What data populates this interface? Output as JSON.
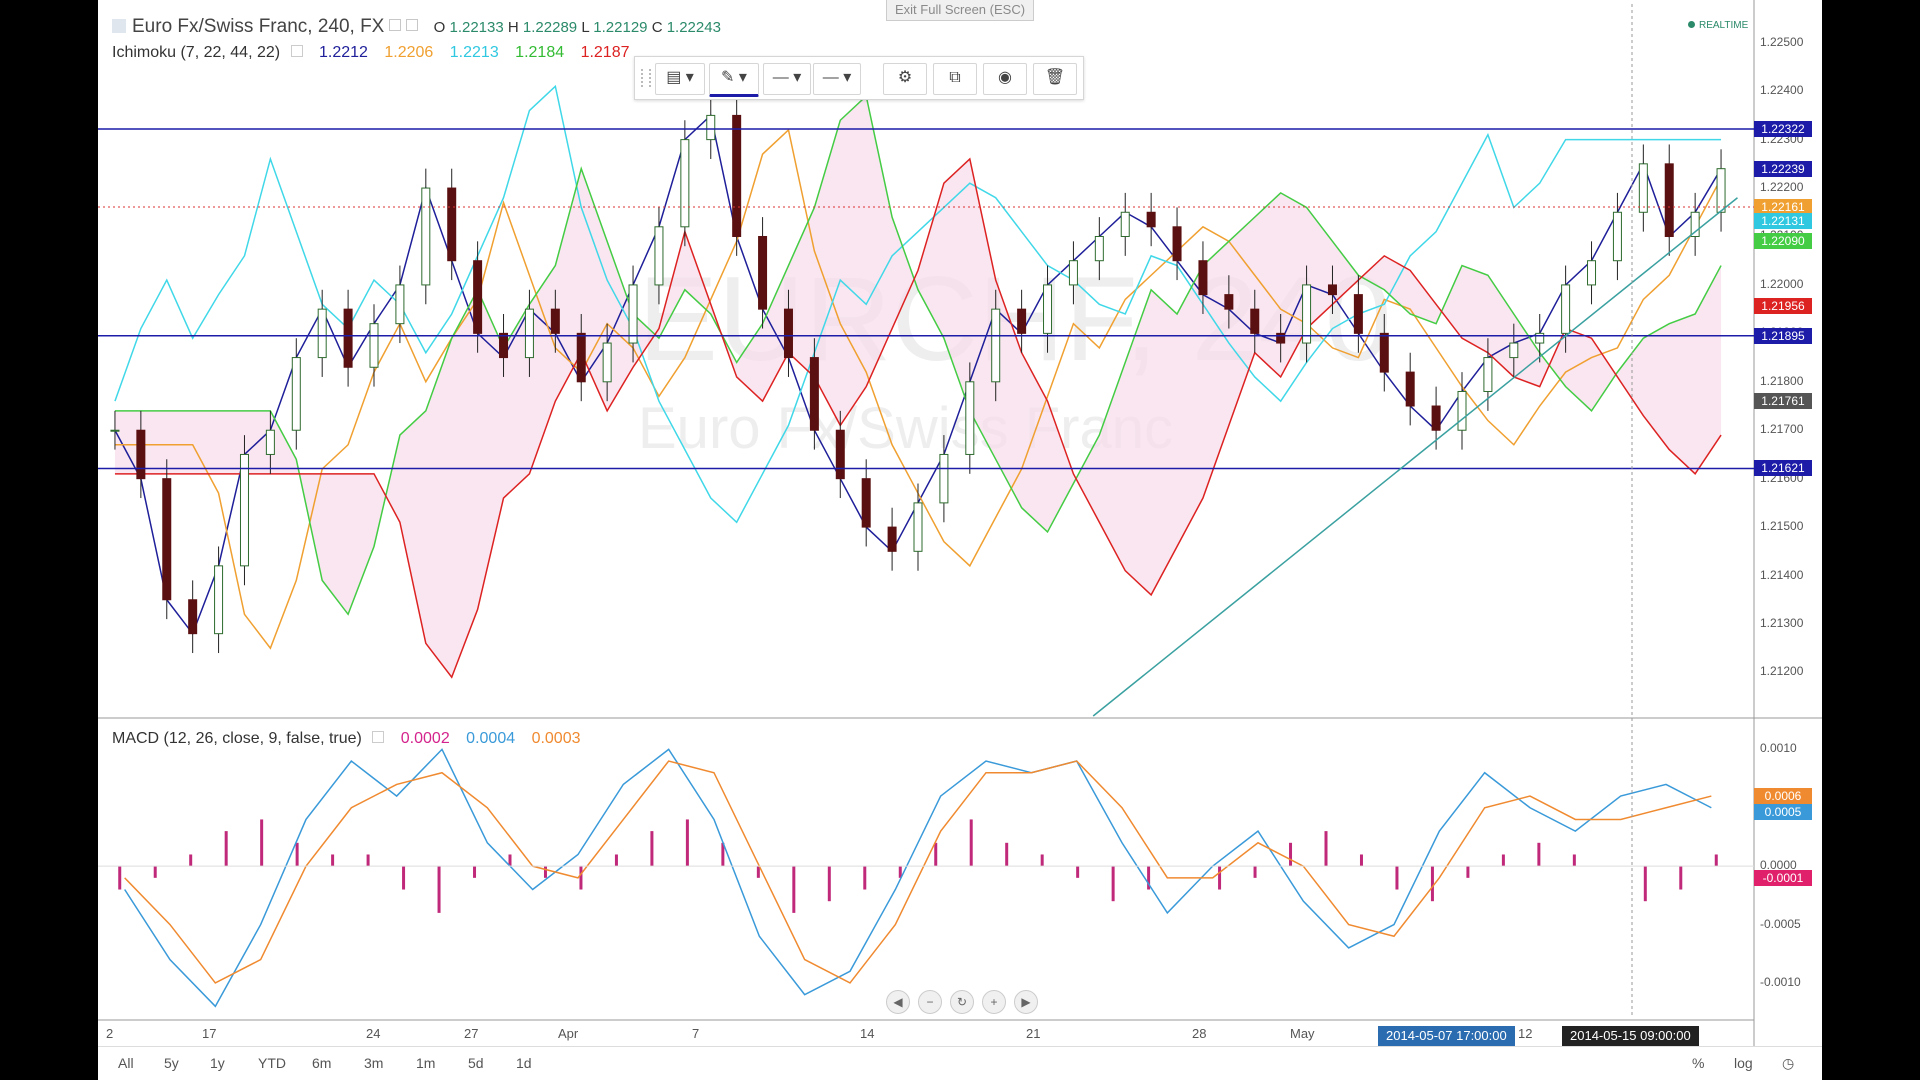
{
  "header": {
    "exit_fullscreen": "Exit Full Screen (ESC)",
    "symbol_title": "Euro Fx/Swiss Franc, 240, FX",
    "ohlc": {
      "o_label": "O",
      "o": "1.22133",
      "h_label": "H",
      "h": "1.22289",
      "l_label": "L",
      "l": "1.22129",
      "c_label": "C",
      "c": "1.22243"
    },
    "realtime": "REALTIME"
  },
  "indicators": {
    "ichimoku": {
      "label": "Ichimoku (7, 22, 44, 22)",
      "values": [
        "1.2212",
        "1.2206",
        "1.2213",
        "1.2184",
        "1.2187"
      ],
      "colors": [
        "#1f1f9a",
        "#f0a030",
        "#40d8e8",
        "#44cc44",
        "#dd2222"
      ]
    },
    "macd": {
      "label": "MACD (12, 26, close, 9, false, true)",
      "values": [
        "0.0002",
        "0.0004",
        "0.0003"
      ],
      "colors": [
        "#d4238c",
        "#3a9ad9",
        "#f08a30"
      ]
    }
  },
  "watermark": {
    "symbol": "EURCHF, 240",
    "name": "Euro Fx/Swiss Franc"
  },
  "toolbar": {
    "icons": [
      "template-icon",
      "pencil-icon",
      "line-style-icon",
      "line-width-icon",
      "gear-icon",
      "clone-icon",
      "eye-icon",
      "trash-icon"
    ]
  },
  "price_axis": {
    "ticks": [
      "1.22500",
      "1.22400",
      "1.22300",
      "1.22200",
      "1.22100",
      "1.22000",
      "1.21900",
      "1.21800",
      "1.21700",
      "1.21600",
      "1.21500",
      "1.21400",
      "1.21300",
      "1.21200"
    ],
    "tags": [
      {
        "text": "1.22322",
        "color": "#1c1ca8"
      },
      {
        "text": "1.22239",
        "color": "#1c1ca8"
      },
      {
        "text": "1.22161",
        "color": "#f0a030"
      },
      {
        "text": "1.22131",
        "color": "#30c8e0"
      },
      {
        "text": "1.22090",
        "color": "#44cc44"
      },
      {
        "text": "1.21956",
        "color": "#dd2222"
      },
      {
        "text": "1.21895",
        "color": "#1c1ca8"
      },
      {
        "text": "1.21761",
        "color": "#555555"
      },
      {
        "text": "1.21621",
        "color": "#1c1ca8"
      }
    ]
  },
  "macd_axis": {
    "ticks": [
      "0.0010",
      "0.0005",
      "0.0000",
      "-0.0005",
      "-0.0010"
    ],
    "tags": [
      {
        "text": "0.0006",
        "color": "#f08a30"
      },
      {
        "text": "0.0005",
        "color": "#3a9ad9"
      },
      {
        "text": "-0.0001",
        "color": "#e0206a"
      }
    ]
  },
  "time_axis": {
    "labels": [
      "2",
      "17",
      "24",
      "27",
      "Apr",
      "7",
      "14",
      "21",
      "28",
      "May",
      "12"
    ],
    "cursor_tags": [
      "2014-05-07 17:00:00",
      "2014-05-15 09:00:00"
    ]
  },
  "bottom_bar": {
    "ranges": [
      "All",
      "5y",
      "1y",
      "YTD",
      "6m",
      "3m",
      "1m",
      "5d",
      "1d"
    ],
    "right": [
      "%",
      "log"
    ]
  },
  "chart_data": [
    {
      "type": "candlestick",
      "series": [
        {
          "name": "EURCHF",
          "color": "#222222"
        }
      ],
      "ylim": [
        1.2111,
        1.2258
      ],
      "horizontal_levels": [
        1.22322,
        1.21895,
        1.21621
      ],
      "dotted_level": 1.22161,
      "close_path": [
        1.217,
        1.216,
        1.2135,
        1.2128,
        1.2142,
        1.2165,
        1.217,
        1.2185,
        1.2195,
        1.2183,
        1.2192,
        1.22,
        1.222,
        1.2205,
        1.219,
        1.2185,
        1.2195,
        1.219,
        1.218,
        1.2188,
        1.22,
        1.2212,
        1.223,
        1.2235,
        1.221,
        1.2195,
        1.2185,
        1.217,
        1.216,
        1.215,
        1.2145,
        1.2155,
        1.2165,
        1.218,
        1.2195,
        1.219,
        1.22,
        1.2205,
        1.221,
        1.2215,
        1.2212,
        1.2205,
        1.2198,
        1.2195,
        1.219,
        1.2188,
        1.22,
        1.2198,
        1.219,
        1.2182,
        1.2175,
        1.217,
        1.2178,
        1.2185,
        1.2188,
        1.219,
        1.22,
        1.2205,
        1.2215,
        1.2225,
        1.221,
        1.2215,
        1.2224
      ],
      "trendline": {
        "from": [
          0.6,
          1.2111
        ],
        "to": [
          0.99,
          1.2218
        ]
      }
    },
    {
      "type": "bar",
      "name": "MACD",
      "ylim": [
        -0.0013,
        0.0012
      ],
      "histogram": [
        -0.0002,
        -0.0001,
        0.0001,
        0.0003,
        0.0004,
        0.0002,
        0.0001,
        0.0001,
        -0.0002,
        -0.0004,
        -0.0001,
        0.0001,
        -0.0001,
        -0.0002,
        0.0001,
        0.0003,
        0.0004,
        0.0002,
        -0.0001,
        -0.0004,
        -0.0003,
        -0.0002,
        -0.0001,
        0.0002,
        0.0004,
        0.0002,
        0.0001,
        -0.0001,
        -0.0003,
        -0.0002,
        0.0,
        -0.0002,
        -0.0001,
        0.0002,
        0.0003,
        0.0001,
        -0.0002,
        -0.0003,
        -0.0001,
        0.0001,
        0.0002,
        0.0001,
        0.0,
        -0.0003,
        -0.0002,
        0.0001
      ],
      "macd_line": [
        -0.0002,
        -0.0008,
        -0.0012,
        -0.0005,
        0.0004,
        0.0009,
        0.0006,
        0.001,
        0.0002,
        -0.0002,
        0.0001,
        0.0007,
        0.001,
        0.0004,
        -0.0006,
        -0.0011,
        -0.0009,
        -0.0002,
        0.0006,
        0.0009,
        0.0008,
        0.0009,
        0.0002,
        -0.0004,
        0.0,
        0.0003,
        -0.0003,
        -0.0007,
        -0.0005,
        0.0003,
        0.0008,
        0.0005,
        0.0003,
        0.0006,
        0.0007,
        0.0005
      ],
      "signal_line": [
        -0.0001,
        -0.0005,
        -0.001,
        -0.0008,
        0.0,
        0.0005,
        0.0007,
        0.0008,
        0.0005,
        0.0,
        -0.0001,
        0.0004,
        0.0009,
        0.0008,
        0.0,
        -0.0008,
        -0.001,
        -0.0005,
        0.0003,
        0.0008,
        0.0008,
        0.0009,
        0.0005,
        -0.0001,
        -0.0001,
        0.0002,
        0.0,
        -0.0005,
        -0.0006,
        -0.0001,
        0.0005,
        0.0006,
        0.0004,
        0.0004,
        0.0005,
        0.0006
      ]
    }
  ]
}
